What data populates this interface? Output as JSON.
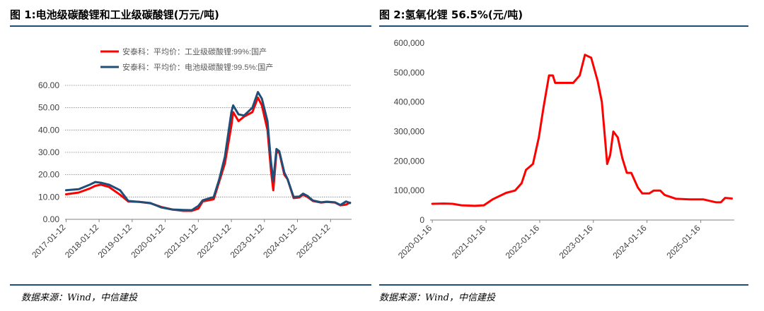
{
  "colors": {
    "rule": "#1f4e79",
    "red": "#ff0000",
    "navy": "#1f4e79",
    "grid": "#808080"
  },
  "chart_data": [
    {
      "type": "line",
      "title": "图 1:电池级碳酸锂和工业级碳酸锂(万元/吨)",
      "source": "数据来源：Wind，中信建投",
      "ylim": [
        0,
        60
      ],
      "y_ticks": [
        "60.00",
        "50.00",
        "40.00",
        "30.00",
        "20.00",
        "10.00",
        "0.00"
      ],
      "x_ticks": [
        "2017-01-12",
        "2018-01-12",
        "2019-01-12",
        "2020-01-12",
        "2021-01-12",
        "2022-01-12",
        "2023-01-12",
        "2024-01-12",
        "2025-01-12"
      ],
      "xlim": [
        "2017-01-01",
        "2025-09-01"
      ],
      "grid": "horizontal dotted",
      "legend_position": "top-left",
      "series": [
        {
          "name": "安泰科：平均价：工业级碳酸锂:99%:国产",
          "color": "#ff0000",
          "points": [
            [
              "2017-01-12",
              11.2
            ],
            [
              "2017-06-01",
              12
            ],
            [
              "2017-10-01",
              13.8
            ],
            [
              "2017-12-01",
              15
            ],
            [
              "2018-02-01",
              15.5
            ],
            [
              "2018-05-01",
              14.5
            ],
            [
              "2018-09-01",
              11
            ],
            [
              "2018-12-01",
              8
            ],
            [
              "2019-04-01",
              7.8
            ],
            [
              "2019-08-01",
              7.2
            ],
            [
              "2019-12-01",
              5.5
            ],
            [
              "2020-04-01",
              4.4
            ],
            [
              "2020-08-01",
              3.8
            ],
            [
              "2020-11-01",
              3.8
            ],
            [
              "2021-01-12",
              4.8
            ],
            [
              "2021-03-01",
              8
            ],
            [
              "2021-07-01",
              9
            ],
            [
              "2021-09-01",
              17
            ],
            [
              "2021-11-01",
              25
            ],
            [
              "2022-01-12",
              42
            ],
            [
              "2022-02-01",
              48
            ],
            [
              "2022-04-01",
              44
            ],
            [
              "2022-06-01",
              46
            ],
            [
              "2022-09-01",
              48
            ],
            [
              "2022-11-01",
              54.5
            ],
            [
              "2022-12-15",
              51
            ],
            [
              "2023-02-15",
              40
            ],
            [
              "2023-03-25",
              22
            ],
            [
              "2023-04-20",
              13
            ],
            [
              "2023-05-25",
              30
            ],
            [
              "2023-06-25",
              30
            ],
            [
              "2023-08-20",
              20
            ],
            [
              "2023-09-25",
              18
            ],
            [
              "2023-12-01",
              9.5
            ],
            [
              "2024-02-01",
              9.8
            ],
            [
              "2024-03-15",
              11
            ],
            [
              "2024-05-01",
              10
            ],
            [
              "2024-07-01",
              8.2
            ],
            [
              "2024-10-01",
              7.5
            ],
            [
              "2024-12-01",
              7.8
            ],
            [
              "2025-03-01",
              7.5
            ],
            [
              "2025-05-01",
              6.3
            ],
            [
              "2025-07-01",
              6.6
            ],
            [
              "2025-08-15",
              7.5
            ]
          ]
        },
        {
          "name": "安泰科：平均价：电池级碳酸锂:99.5%:国产",
          "color": "#1f4e79",
          "points": [
            [
              "2017-01-12",
              13
            ],
            [
              "2017-06-01",
              13.5
            ],
            [
              "2017-10-01",
              15.5
            ],
            [
              "2017-12-01",
              16.7
            ],
            [
              "2018-02-01",
              16.4
            ],
            [
              "2018-05-01",
              15.5
            ],
            [
              "2018-09-01",
              13
            ],
            [
              "2018-12-01",
              8.2
            ],
            [
              "2019-04-01",
              7.8
            ],
            [
              "2019-08-01",
              7.3
            ],
            [
              "2019-12-01",
              5.3
            ],
            [
              "2020-04-01",
              4.4
            ],
            [
              "2020-08-01",
              4.2
            ],
            [
              "2020-11-01",
              4.1
            ],
            [
              "2021-01-12",
              6
            ],
            [
              "2021-03-01",
              8.5
            ],
            [
              "2021-07-01",
              10
            ],
            [
              "2021-09-01",
              18
            ],
            [
              "2021-11-01",
              28
            ],
            [
              "2022-01-12",
              48
            ],
            [
              "2022-02-01",
              51
            ],
            [
              "2022-04-01",
              47
            ],
            [
              "2022-06-01",
              46.5
            ],
            [
              "2022-09-01",
              50
            ],
            [
              "2022-11-01",
              57
            ],
            [
              "2022-12-15",
              54
            ],
            [
              "2023-02-15",
              44
            ],
            [
              "2023-03-25",
              26
            ],
            [
              "2023-04-20",
              17
            ],
            [
              "2023-05-25",
              31.5
            ],
            [
              "2023-06-25",
              30.5
            ],
            [
              "2023-08-20",
              21
            ],
            [
              "2023-09-25",
              18
            ],
            [
              "2023-12-01",
              10
            ],
            [
              "2024-02-01",
              10.2
            ],
            [
              "2024-03-15",
              11.5
            ],
            [
              "2024-05-01",
              10.5
            ],
            [
              "2024-07-01",
              8.4
            ],
            [
              "2024-10-01",
              7.6
            ],
            [
              "2024-12-01",
              7.9
            ],
            [
              "2025-03-01",
              7.6
            ],
            [
              "2025-05-01",
              6.4
            ],
            [
              "2025-07-01",
              8
            ],
            [
              "2025-08-15",
              7.3
            ]
          ]
        }
      ]
    },
    {
      "type": "line",
      "title": "图 2:氢氧化锂 56.5%(元/吨)",
      "source": "数据来源：Wind，中信建投",
      "ylim": [
        0,
        600000
      ],
      "y_ticks": [
        "600,000",
        "500,000",
        "400,000",
        "300,000",
        "200,000",
        "100,000",
        "0"
      ],
      "x_ticks": [
        "2020-01-16",
        "2021-01-16",
        "2022-01-16",
        "2023-01-16",
        "2024-01-16",
        "2025-01-16"
      ],
      "xlim": [
        "2020-01-01",
        "2025-09-01"
      ],
      "grid": "none",
      "series": [
        {
          "color": "#ff0000",
          "points": [
            [
              "2020-01-16",
              55000
            ],
            [
              "2020-04-01",
              56000
            ],
            [
              "2020-06-01",
              55000
            ],
            [
              "2020-08-01",
              50000
            ],
            [
              "2020-11-01",
              48000
            ],
            [
              "2021-01-01",
              50000
            ],
            [
              "2021-03-01",
              70000
            ],
            [
              "2021-06-01",
              92000
            ],
            [
              "2021-08-01",
              100000
            ],
            [
              "2021-09-15",
              125000
            ],
            [
              "2021-10-15",
              170000
            ],
            [
              "2021-12-01",
              190000
            ],
            [
              "2022-01-10",
              280000
            ],
            [
              "2022-02-10",
              380000
            ],
            [
              "2022-03-20",
              490000
            ],
            [
              "2022-04-15",
              490000
            ],
            [
              "2022-05-01",
              465000
            ],
            [
              "2022-09-01",
              465000
            ],
            [
              "2022-10-15",
              490000
            ],
            [
              "2022-11-20",
              560000
            ],
            [
              "2023-01-01",
              550000
            ],
            [
              "2023-02-15",
              470000
            ],
            [
              "2023-03-15",
              400000
            ],
            [
              "2023-04-10",
              250000
            ],
            [
              "2023-04-20",
              190000
            ],
            [
              "2023-05-10",
              220000
            ],
            [
              "2023-06-01",
              300000
            ],
            [
              "2023-07-01",
              280000
            ],
            [
              "2023-08-01",
              210000
            ],
            [
              "2023-09-01",
              160000
            ],
            [
              "2023-10-01",
              160000
            ],
            [
              "2023-11-15",
              110000
            ],
            [
              "2023-12-15",
              90000
            ],
            [
              "2024-02-01",
              90000
            ],
            [
              "2024-03-01",
              100000
            ],
            [
              "2024-04-15",
              100000
            ],
            [
              "2024-05-15",
              85000
            ],
            [
              "2024-08-01",
              72000
            ],
            [
              "2024-11-01",
              70000
            ],
            [
              "2025-02-01",
              70000
            ],
            [
              "2025-05-01",
              60000
            ],
            [
              "2025-06-01",
              60000
            ],
            [
              "2025-07-01",
              75000
            ],
            [
              "2025-08-15",
              73000
            ]
          ]
        }
      ]
    }
  ]
}
